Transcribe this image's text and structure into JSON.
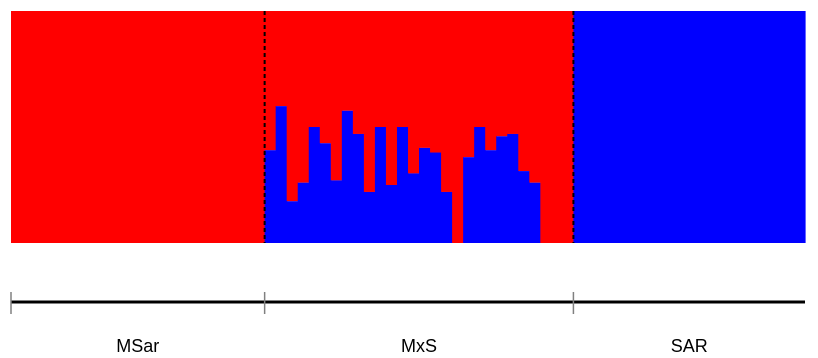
{
  "chart_data": {
    "type": "bar",
    "subtype": "stacked-admixture",
    "colors": {
      "cluster_1": "#ff0000",
      "cluster_2": "#0000ff"
    },
    "ylim": [
      0,
      1
    ],
    "grid": false,
    "legend": "none",
    "groups": [
      {
        "label": "MSar",
        "n": 23,
        "cluster_2_values": [
          0,
          0,
          0,
          0,
          0,
          0,
          0,
          0,
          0,
          0,
          0,
          0,
          0,
          0,
          0,
          0,
          0,
          0,
          0,
          0,
          0,
          0,
          0
        ]
      },
      {
        "label": "MxS",
        "n": 28,
        "cluster_2_values": [
          0.4,
          0.59,
          0.18,
          0.26,
          0.5,
          0.43,
          0.27,
          0.57,
          0.47,
          0.22,
          0.5,
          0.25,
          0.5,
          0.3,
          0.41,
          0.39,
          0.22,
          0.0,
          0.37,
          0.5,
          0.4,
          0.46,
          0.47,
          0.31,
          0.26,
          0.0,
          0.0,
          0.0
        ]
      },
      {
        "label": "SAR",
        "n": 21,
        "cluster_2_values": [
          1,
          1,
          1,
          1,
          1,
          1,
          1,
          1,
          1,
          1,
          1,
          1,
          1,
          1,
          1,
          1,
          1,
          1,
          1,
          1,
          1
        ]
      }
    ]
  }
}
